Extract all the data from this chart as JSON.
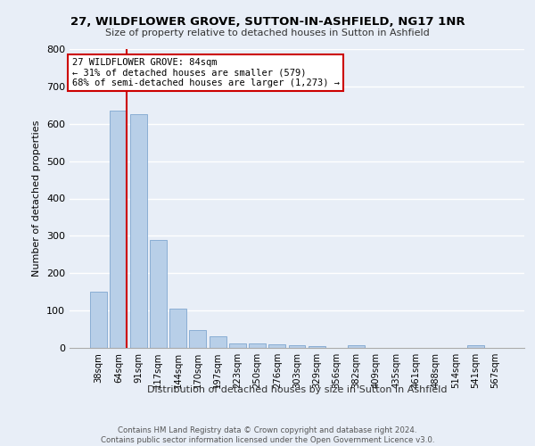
{
  "title": "27, WILDFLOWER GROVE, SUTTON-IN-ASHFIELD, NG17 1NR",
  "subtitle": "Size of property relative to detached houses in Sutton in Ashfield",
  "xlabel": "Distribution of detached houses by size in Sutton in Ashfield",
  "ylabel": "Number of detached properties",
  "footer_line1": "Contains HM Land Registry data © Crown copyright and database right 2024.",
  "footer_line2": "Contains public sector information licensed under the Open Government Licence v3.0.",
  "categories": [
    "38sqm",
    "64sqm",
    "91sqm",
    "117sqm",
    "144sqm",
    "170sqm",
    "197sqm",
    "223sqm",
    "250sqm",
    "276sqm",
    "303sqm",
    "329sqm",
    "356sqm",
    "382sqm",
    "409sqm",
    "435sqm",
    "461sqm",
    "488sqm",
    "514sqm",
    "541sqm",
    "567sqm"
  ],
  "values": [
    150,
    635,
    625,
    290,
    105,
    47,
    30,
    12,
    12,
    10,
    8,
    5,
    0,
    8,
    0,
    0,
    0,
    0,
    0,
    8,
    0
  ],
  "bar_color": "#b8cfe8",
  "bar_edge_color": "#8aaed4",
  "background_color": "#e8eef7",
  "plot_background": "#e8eef7",
  "grid_color": "#ffffff",
  "vline_x": 1.42,
  "vline_color": "#cc0000",
  "annotation_line1": "27 WILDFLOWER GROVE: 84sqm",
  "annotation_line2": "← 31% of detached houses are smaller (579)",
  "annotation_line3": "68% of semi-detached houses are larger (1,273) →",
  "annotation_box_color": "#cc0000",
  "annotation_fill": "#ffffff",
  "ylim": [
    0,
    800
  ],
  "yticks": [
    0,
    100,
    200,
    300,
    400,
    500,
    600,
    700,
    800
  ]
}
